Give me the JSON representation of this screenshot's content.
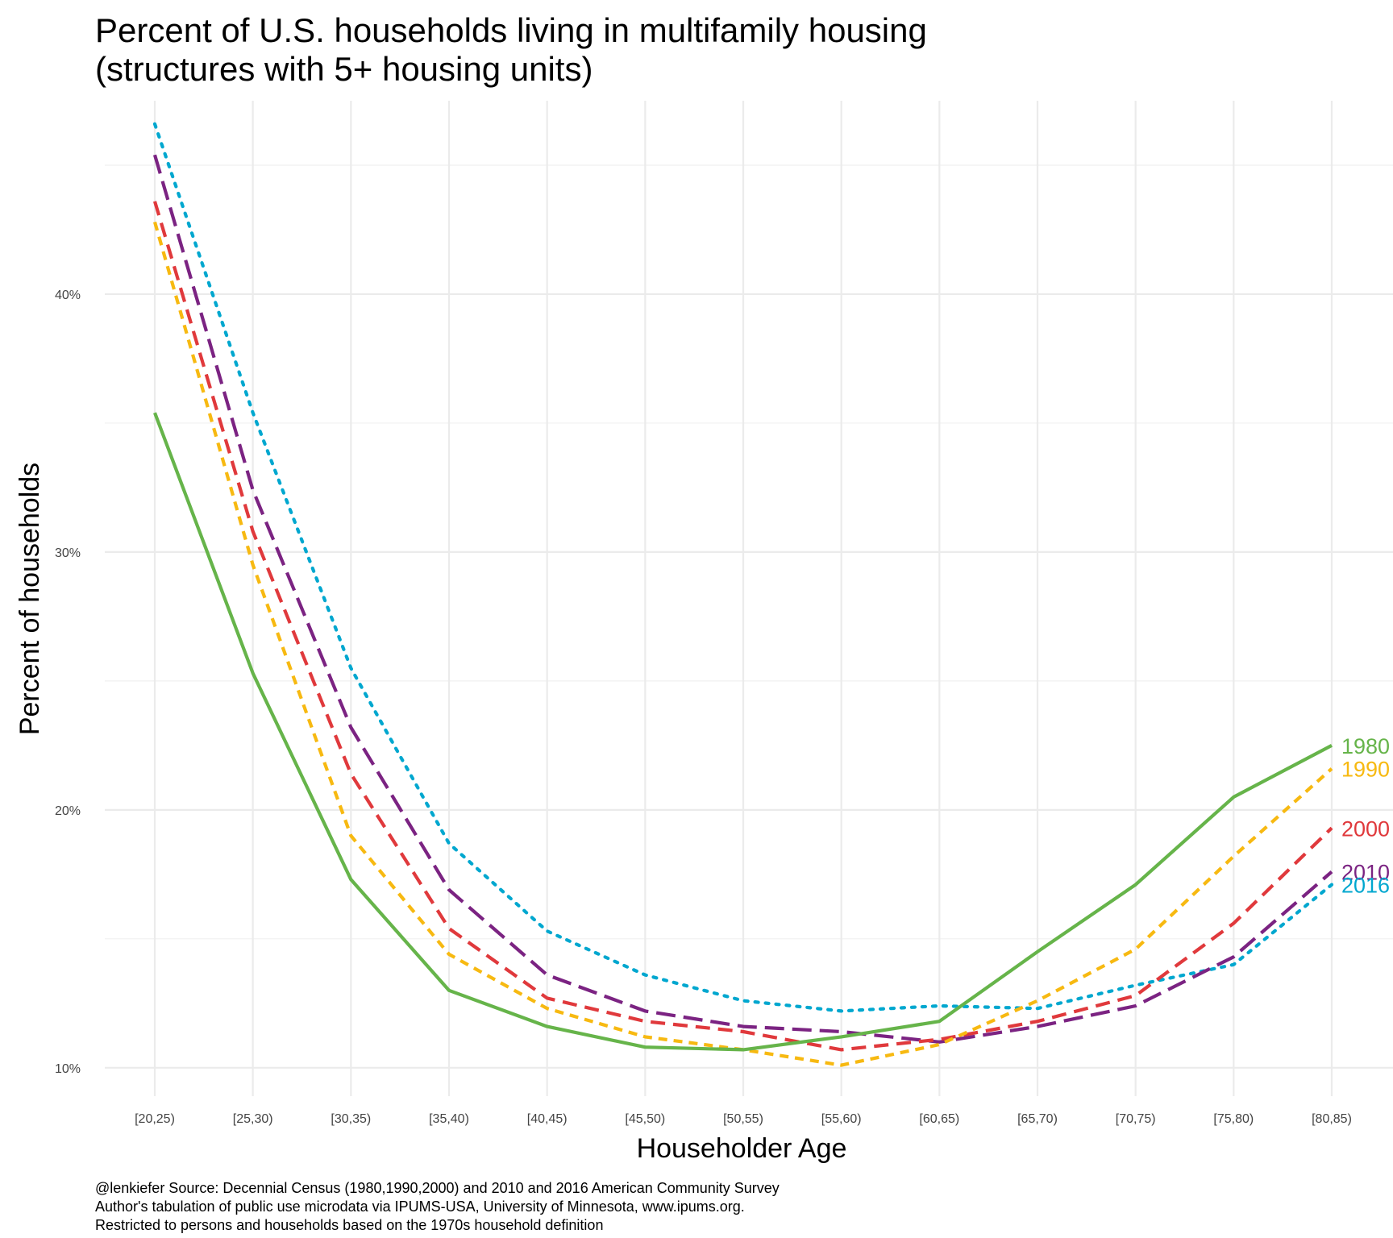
{
  "chart_data": {
    "type": "line",
    "title": [
      "Percent of U.S. households living in multifamily housing",
      "(structures with 5+ housing units)"
    ],
    "xlabel": "Householder Age",
    "ylabel": "Percent of households",
    "categories": [
      "[20,25)",
      "[25,30)",
      "[30,35)",
      "[35,40)",
      "[40,45)",
      "[45,50)",
      "[50,55)",
      "[55,60)",
      "[60,65)",
      "[65,70)",
      "[70,75)",
      "[75,80)",
      "[80,85)"
    ],
    "y_ticks": [
      10,
      20,
      30,
      40
    ],
    "y_tick_labels": [
      "10%",
      "20%",
      "30%",
      "40%"
    ],
    "ylim": [
      8.9,
      47.5
    ],
    "grid": true,
    "legend": "direct labels at right end of lines",
    "series": [
      {
        "name": "1980",
        "color": "#66b44a",
        "dash": "solid",
        "values": [
          35.4,
          25.3,
          17.3,
          13.0,
          11.6,
          10.8,
          10.7,
          11.2,
          11.8,
          14.5,
          17.1,
          20.5,
          22.5
        ]
      },
      {
        "name": "1990",
        "color": "#f7b911",
        "dash": "short",
        "values": [
          42.8,
          29.5,
          19.0,
          14.4,
          12.3,
          11.2,
          10.7,
          10.1,
          10.9,
          12.6,
          14.6,
          18.2,
          21.6
        ]
      },
      {
        "name": "2000",
        "color": "#e0393c",
        "dash": "medium",
        "values": [
          43.6,
          30.8,
          21.4,
          15.4,
          12.7,
          11.8,
          11.4,
          10.7,
          11.1,
          11.8,
          12.8,
          15.6,
          19.3
        ]
      },
      {
        "name": "2010",
        "color": "#7b2382",
        "dash": "long",
        "values": [
          45.4,
          32.4,
          23.2,
          16.9,
          13.6,
          12.2,
          11.6,
          11.4,
          11.0,
          11.6,
          12.4,
          14.3,
          17.6
        ]
      },
      {
        "name": "2016",
        "color": "#00a7cf",
        "dash": "dotted",
        "values": [
          46.6,
          35.4,
          25.5,
          18.7,
          15.3,
          13.6,
          12.6,
          12.2,
          12.4,
          12.3,
          13.2,
          14.0,
          17.1
        ]
      }
    ],
    "caption": [
      "@lenkiefer Source: Decennial Census (1980,1990,2000) and 2010 and 2016 American Community Survey",
      "Author's tabulation of public use microdata via IPUMS-USA, University of Minnesota, www.ipums.org.",
      "Restricted to persons and households based on the 1970s household definition"
    ]
  }
}
